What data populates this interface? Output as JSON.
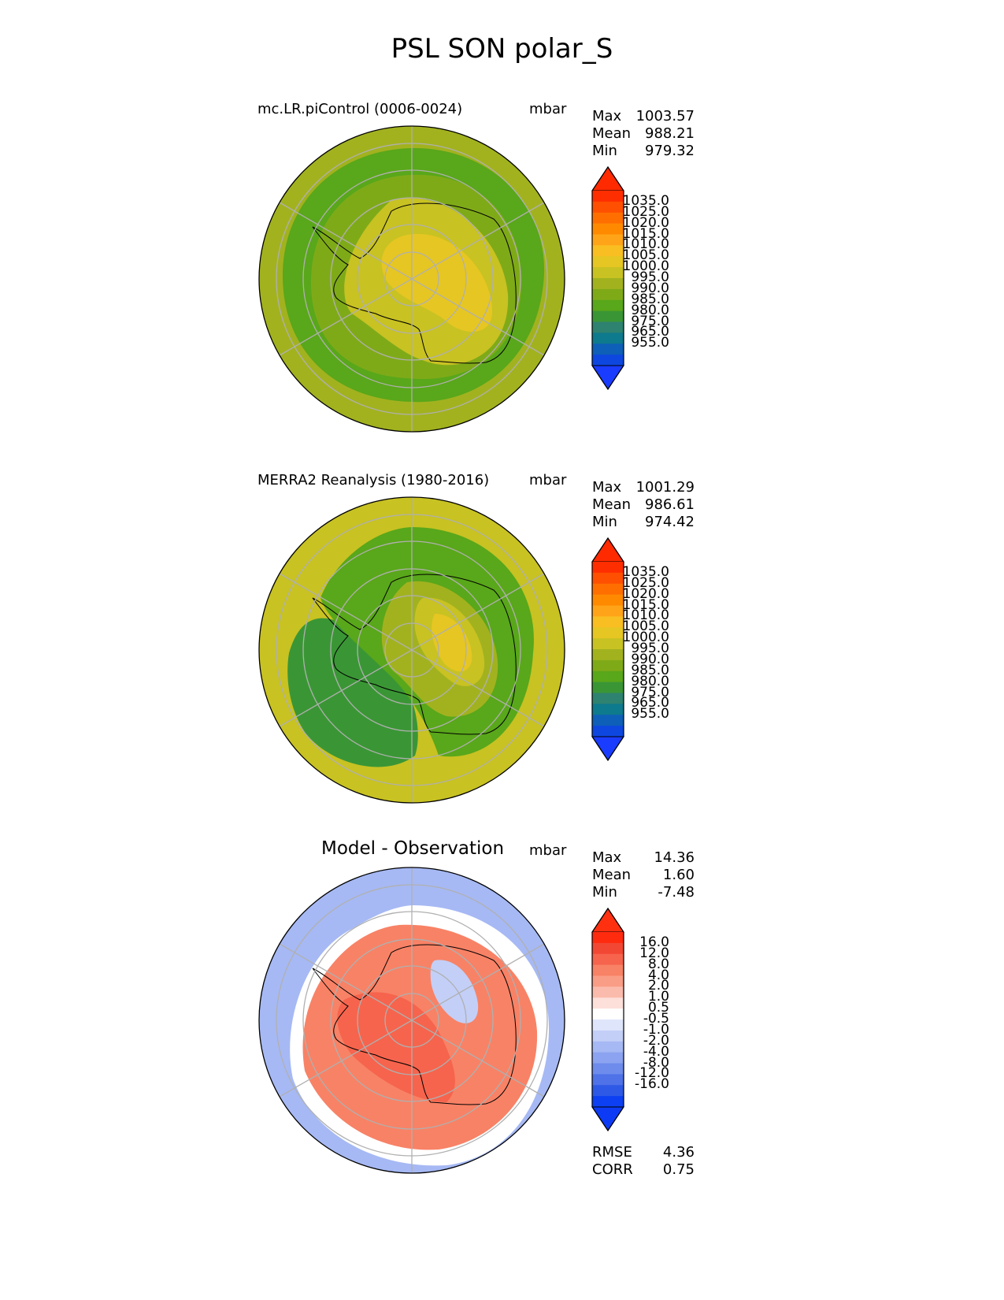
{
  "figure": {
    "title": "PSL SON polar_S"
  },
  "panels": [
    {
      "id": "model",
      "title": "mc.LR.piControl (0006-0024)",
      "units": "mbar",
      "stats": [
        {
          "label": "Max",
          "value": "1003.57"
        },
        {
          "label": "Mean",
          "value": "988.21"
        },
        {
          "label": "Min",
          "value": "979.32"
        }
      ],
      "colorbar": {
        "labels": [
          "1035.0",
          "1025.0",
          "1020.0",
          "1015.0",
          "1010.0",
          "1005.0",
          "1000.0",
          "995.0",
          "990.0",
          "985.0",
          "980.0",
          "975.0",
          "965.0",
          "955.0"
        ],
        "colors": [
          "#ff2e00",
          "#ff4f00",
          "#ff6f00",
          "#ff8a00",
          "#ffa418",
          "#f9bf22",
          "#e6c622",
          "#c8c223",
          "#a2b21f",
          "#7faa18",
          "#59a71a",
          "#3a9635",
          "#2e8270",
          "#0e7a8d",
          "#0e5fb7",
          "#0d47e0"
        ],
        "over": "#ff2a00",
        "under": "#1a3cff"
      },
      "regions": [
        {
          "name": "outer-ring",
          "value": 992
        },
        {
          "name": "storm-belt",
          "value": 983
        },
        {
          "name": "coastal-trough",
          "value": 985
        },
        {
          "name": "interior-plateau",
          "value": 995
        },
        {
          "name": "east-high",
          "value": 1001
        },
        {
          "name": "pole-high",
          "value": 1003
        }
      ]
    },
    {
      "id": "obs",
      "title": "MERRA2 Reanalysis (1980-2016)",
      "units": "mbar",
      "stats": [
        {
          "label": "Max",
          "value": "1001.29"
        },
        {
          "label": "Mean",
          "value": "986.61"
        },
        {
          "label": "Min",
          "value": "974.42"
        }
      ],
      "colorbar": {
        "labels": [
          "1035.0",
          "1025.0",
          "1020.0",
          "1015.0",
          "1010.0",
          "1005.0",
          "1000.0",
          "995.0",
          "990.0",
          "985.0",
          "980.0",
          "975.0",
          "965.0",
          "955.0"
        ],
        "colors": [
          "#ff2e00",
          "#ff4f00",
          "#ff6f00",
          "#ff8a00",
          "#ffa418",
          "#f9bf22",
          "#e6c622",
          "#c8c223",
          "#a2b21f",
          "#7faa18",
          "#59a71a",
          "#3a9635",
          "#2e8270",
          "#0e7a8d",
          "#0e5fb7",
          "#0d47e0"
        ],
        "over": "#ff2a00",
        "under": "#1a3cff"
      },
      "regions": [
        {
          "name": "outer-ring",
          "value": 995
        },
        {
          "name": "storm-belt",
          "value": 978
        },
        {
          "name": "coastal-trough",
          "value": 984
        },
        {
          "name": "interior-plateau",
          "value": 992
        },
        {
          "name": "east-high",
          "value": 999
        },
        {
          "name": "pole-high",
          "value": 1000
        }
      ]
    },
    {
      "id": "diff",
      "title": "Model - Observation",
      "units": "mbar",
      "stats": [
        {
          "label": "Max",
          "value": "14.36"
        },
        {
          "label": "Mean",
          "value": "1.60"
        },
        {
          "label": "Min",
          "value": "-7.48"
        }
      ],
      "extra_stats": [
        {
          "label": "RMSE",
          "value": "4.36"
        },
        {
          "label": "CORR",
          "value": "0.75"
        }
      ],
      "colorbar": {
        "labels": [
          "16.0",
          "12.0",
          "8.0",
          "4.0",
          "2.0",
          "1.0",
          "0.5",
          "-0.5",
          "-1.0",
          "-2.0",
          "-4.0",
          "-8.0",
          "-12.0",
          "-16.0"
        ],
        "colors": [
          "#ff2b0f",
          "#f24733",
          "#f6644d",
          "#f88266",
          "#fa9d86",
          "#fbbbac",
          "#fde0da",
          "#ffffff",
          "#dfe6fb",
          "#c3cff7",
          "#a6b9f4",
          "#8ba3f0",
          "#6e8cec",
          "#4f72e8",
          "#2e59e6",
          "#0d40f2"
        ],
        "over": "#ff3010",
        "under": "#0d3bf5"
      },
      "regions": [
        {
          "name": "outer-ring",
          "value": -4
        },
        {
          "name": "white-band",
          "value": 0
        },
        {
          "name": "positive-belt",
          "value": 4
        },
        {
          "name": "strong-positive",
          "value": 10
        },
        {
          "name": "east-negative",
          "value": -2
        }
      ]
    }
  ]
}
